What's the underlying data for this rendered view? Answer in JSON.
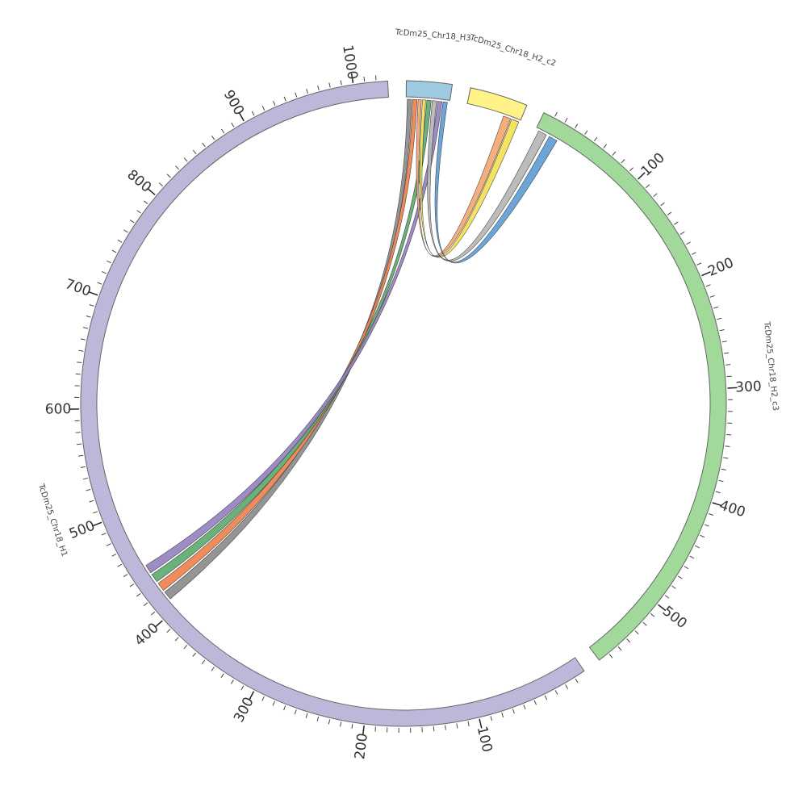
{
  "chart_data": {
    "type": "circos",
    "segments": [
      {
        "name": "TcDm25_Chr18_H3",
        "range": [
          0,
          40
        ],
        "color": "#9ecae1",
        "ticks": []
      },
      {
        "name": "TcDm25_Chr18_H2_c2",
        "range": [
          0,
          51
        ],
        "color": "#fff287",
        "ticks": []
      },
      {
        "name": "TcDm25_Chr18_H2_c3",
        "range": [
          0,
          570
        ],
        "color": "#a1d99b",
        "ticks": [
          100,
          200,
          300,
          400,
          500
        ]
      },
      {
        "name": "TcDm25_Chr18_H1",
        "range": [
          0,
          1030
        ],
        "color": "#bcb8da",
        "ticks": [
          100,
          200,
          300,
          400,
          500,
          600,
          700,
          800,
          900,
          1000
        ]
      }
    ],
    "links": [
      {
        "source": "TcDm25_Chr18_H3",
        "source_range": [
          1,
          5
        ],
        "target": "TcDm25_Chr18_H1",
        "target_range": [
          410,
          418
        ],
        "color": "#8a8a8a"
      },
      {
        "source": "TcDm25_Chr18_H3",
        "source_range": [
          6,
          10
        ],
        "target": "TcDm25_Chr18_H1",
        "target_range": [
          420,
          428
        ],
        "color": "#ee8048"
      },
      {
        "source": "TcDm25_Chr18_H3",
        "source_range": [
          19,
          23
        ],
        "target": "TcDm25_Chr18_H1",
        "target_range": [
          430,
          438
        ],
        "color": "#5aaa6a"
      },
      {
        "source": "TcDm25_Chr18_H3",
        "source_range": [
          29,
          33
        ],
        "target": "TcDm25_Chr18_H1",
        "target_range": [
          440,
          448
        ],
        "color": "#9480c0"
      },
      {
        "source": "TcDm25_Chr18_H3",
        "source_range": [
          11,
          14
        ],
        "target": "TcDm25_Chr18_H2_c2",
        "target_range": [
          35,
          42
        ],
        "color": "#f6a56f"
      },
      {
        "source": "TcDm25_Chr18_H3",
        "source_range": [
          15,
          18
        ],
        "target": "TcDm25_Chr18_H2_c2",
        "target_range": [
          43,
          50
        ],
        "color": "#f3e050"
      },
      {
        "source": "TcDm25_Chr18_H3",
        "source_range": [
          24,
          28
        ],
        "target": "TcDm25_Chr18_H2_c3",
        "target_range": [
          3,
          11
        ],
        "color": "#b5b5b5"
      },
      {
        "source": "TcDm25_Chr18_H3",
        "source_range": [
          34,
          38
        ],
        "target": "TcDm25_Chr18_H2_c3",
        "target_range": [
          14,
          22
        ],
        "color": "#5b9bd5"
      }
    ]
  }
}
